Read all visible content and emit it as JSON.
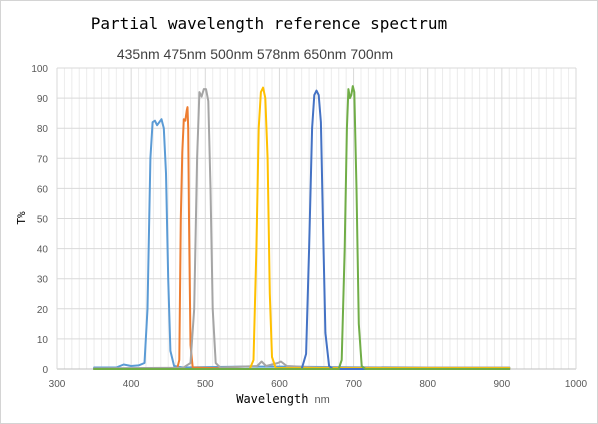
{
  "chart_data": {
    "type": "line",
    "title": "Partial wavelength reference spectrum",
    "subtitle": "435nm 475nm 500nm 578nm 650nm 700nm",
    "xlabel": "Wavelength",
    "xlabel_unit": "nm",
    "ylabel": "T%",
    "xlim": [
      300,
      1000
    ],
    "ylim": [
      0,
      100
    ],
    "x_ticks": [
      300,
      400,
      500,
      600,
      700,
      800,
      900,
      1000
    ],
    "y_ticks": [
      0,
      10,
      20,
      30,
      40,
      50,
      60,
      70,
      80,
      90,
      100
    ],
    "grid": true,
    "legend": "none",
    "series": [
      {
        "color": "#5B9BD5",
        "points": [
          [
            350,
            0.5
          ],
          [
            380,
            0.5
          ],
          [
            390,
            1.5
          ],
          [
            400,
            1
          ],
          [
            410,
            1.2
          ],
          [
            418,
            2
          ],
          [
            422,
            20
          ],
          [
            426,
            70
          ],
          [
            429,
            82
          ],
          [
            432,
            82.5
          ],
          [
            435,
            81
          ],
          [
            438,
            82
          ],
          [
            441,
            83
          ],
          [
            444,
            80
          ],
          [
            447,
            65
          ],
          [
            450,
            30
          ],
          [
            453,
            6
          ],
          [
            458,
            1
          ],
          [
            470,
            0.5
          ],
          [
            550,
            0.8
          ],
          [
            600,
            0.8
          ],
          [
            700,
            0.6
          ],
          [
            800,
            0.5
          ],
          [
            910,
            0.5
          ]
        ]
      },
      {
        "color": "#ED7D31",
        "points": [
          [
            350,
            0
          ],
          [
            462,
            0
          ],
          [
            465,
            3
          ],
          [
            467,
            50
          ],
          [
            469,
            72
          ],
          [
            471,
            83
          ],
          [
            473,
            82.5
          ],
          [
            475,
            86
          ],
          [
            476,
            87
          ],
          [
            477,
            80
          ],
          [
            478,
            50
          ],
          [
            480,
            8
          ],
          [
            483,
            0.5
          ],
          [
            550,
            0
          ],
          [
            910,
            0
          ]
        ]
      },
      {
        "color": "#A5A5A5",
        "points": [
          [
            350,
            0.2
          ],
          [
            470,
            0.4
          ],
          [
            480,
            2
          ],
          [
            485,
            20
          ],
          [
            489,
            70
          ],
          [
            492,
            92
          ],
          [
            495,
            90.5
          ],
          [
            498,
            93
          ],
          [
            501,
            93
          ],
          [
            504,
            89
          ],
          [
            507,
            60
          ],
          [
            510,
            20
          ],
          [
            514,
            2
          ],
          [
            520,
            0.5
          ],
          [
            570,
            1
          ],
          [
            576,
            2.5
          ],
          [
            582,
            1
          ],
          [
            598,
            2
          ],
          [
            602,
            2.5
          ],
          [
            610,
            1
          ],
          [
            650,
            0.5
          ],
          [
            910,
            0.5
          ]
        ]
      },
      {
        "color": "#FFC000",
        "points": [
          [
            350,
            0
          ],
          [
            560,
            0
          ],
          [
            565,
            3
          ],
          [
            569,
            40
          ],
          [
            572,
            80
          ],
          [
            575,
            92
          ],
          [
            578,
            93.5
          ],
          [
            581,
            90
          ],
          [
            584,
            70
          ],
          [
            587,
            25
          ],
          [
            590,
            4
          ],
          [
            595,
            0.3
          ],
          [
            910,
            0.3
          ]
        ]
      },
      {
        "color": "#4472C4",
        "points": [
          [
            350,
            0
          ],
          [
            630,
            0
          ],
          [
            636,
            5
          ],
          [
            640,
            40
          ],
          [
            644,
            80
          ],
          [
            647,
            91
          ],
          [
            650,
            92.5
          ],
          [
            653,
            91
          ],
          [
            656,
            82
          ],
          [
            659,
            45
          ],
          [
            662,
            12
          ],
          [
            667,
            1
          ],
          [
            672,
            0
          ],
          [
            910,
            0
          ]
        ]
      },
      {
        "color": "#70AD47",
        "points": [
          [
            350,
            0
          ],
          [
            680,
            0
          ],
          [
            684,
            3
          ],
          [
            688,
            40
          ],
          [
            691,
            80
          ],
          [
            693,
            93
          ],
          [
            695,
            90
          ],
          [
            697,
            91
          ],
          [
            699,
            94
          ],
          [
            701,
            92
          ],
          [
            704,
            60
          ],
          [
            707,
            15
          ],
          [
            711,
            1
          ],
          [
            716,
            0
          ],
          [
            910,
            0
          ]
        ]
      }
    ]
  }
}
